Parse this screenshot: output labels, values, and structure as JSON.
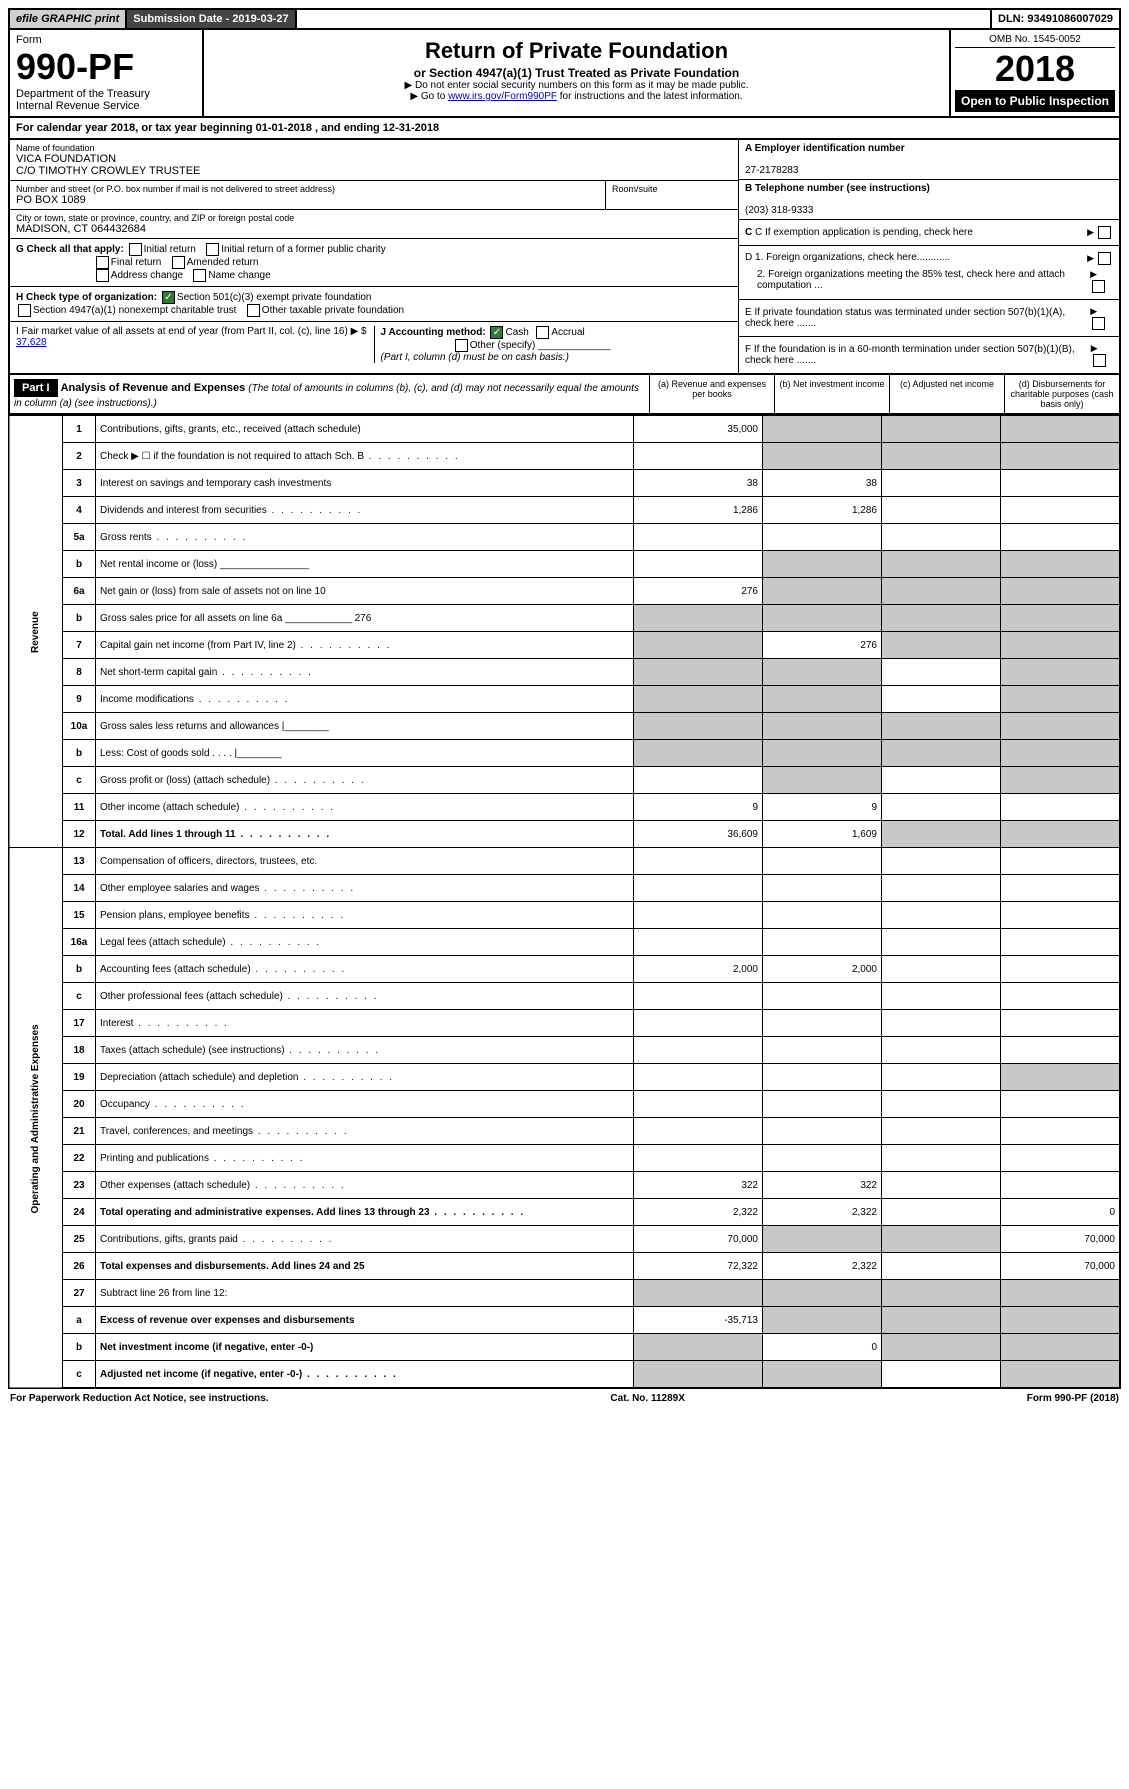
{
  "topbar": {
    "efile": "efile GRAPHIC print",
    "submission_label": "Submission Date - 2019-03-27",
    "dln": "DLN: 93491086007029"
  },
  "header": {
    "form_word": "Form",
    "form_num": "990-PF",
    "dept": "Department of the Treasury",
    "irs": "Internal Revenue Service",
    "title": "Return of Private Foundation",
    "subtitle": "or Section 4947(a)(1) Trust Treated as Private Foundation",
    "notice1": "▶ Do not enter social security numbers on this form as it may be made public.",
    "notice2_pre": "▶ Go to ",
    "notice2_link": "www.irs.gov/Form990PF",
    "notice2_post": " for instructions and the latest information.",
    "omb": "OMB No. 1545-0052",
    "year": "2018",
    "open": "Open to Public Inspection"
  },
  "calendar": "For calendar year 2018, or tax year beginning 01-01-2018             , and ending 12-31-2018",
  "foundation": {
    "name_label": "Name of foundation",
    "name1": "VICA FOUNDATION",
    "name2": "C/O TIMOTHY CROWLEY TRUSTEE",
    "street_label": "Number and street (or P.O. box number if mail is not delivered to street address)",
    "street": "PO BOX 1089",
    "room_label": "Room/suite",
    "city_label": "City or town, state or province, country, and ZIP or foreign postal code",
    "city": "MADISON, CT  064432684"
  },
  "right": {
    "a_label": "A Employer identification number",
    "a_val": "27-2178283",
    "b_label": "B Telephone number (see instructions)",
    "b_val": "(203) 318-9333",
    "c_label": "C If exemption application is pending, check here",
    "d1": "D 1. Foreign organizations, check here............",
    "d2": "2. Foreign organizations meeting the 85% test, check here and attach computation ...",
    "e": "E If private foundation status was terminated under section 507(b)(1)(A), check here .......",
    "f": "F If the foundation is in a 60-month termination under section 507(b)(1)(B), check here ......."
  },
  "g": {
    "label": "G Check all that apply:",
    "initial": "Initial return",
    "initial_former": "Initial return of a former public charity",
    "final": "Final return",
    "amended": "Amended return",
    "address": "Address change",
    "name": "Name change"
  },
  "h": {
    "label": "H Check type of organization:",
    "s501": "Section 501(c)(3) exempt private foundation",
    "s4947": "Section 4947(a)(1) nonexempt charitable trust",
    "other": "Other taxable private foundation"
  },
  "i": {
    "label": "I Fair market value of all assets at end of year (from Part II, col. (c), line 16) ▶ $",
    "val": "37,628"
  },
  "j": {
    "label": "J Accounting method:",
    "cash": "Cash",
    "accrual": "Accrual",
    "other": "Other (specify)",
    "note": "(Part I, column (d) must be on cash basis.)"
  },
  "part1": {
    "label": "Part I",
    "title": "Analysis of Revenue and Expenses",
    "desc": "(The total of amounts in columns (b), (c), and (d) may not necessarily equal the amounts in column (a) (see instructions).)",
    "col_a": "(a)   Revenue and expenses per books",
    "col_b": "(b)   Net investment income",
    "col_c": "(c)   Adjusted net income",
    "col_d": "(d)   Disbursements for charitable purposes (cash basis only)"
  },
  "sections": {
    "revenue": "Revenue",
    "expenses": "Operating and Administrative Expenses"
  },
  "rows": [
    {
      "n": "1",
      "t": "Contributions, gifts, grants, etc., received (attach schedule)",
      "a": "35,000",
      "b": "",
      "sb": true,
      "sc": true,
      "sd": true
    },
    {
      "n": "2",
      "t": "Check ▶ ☐ if the foundation is not required to attach Sch. B",
      "a": "",
      "b": "",
      "sb": true,
      "sc": true,
      "sd": true,
      "dots": true
    },
    {
      "n": "3",
      "t": "Interest on savings and temporary cash investments",
      "a": "38",
      "b": "38"
    },
    {
      "n": "4",
      "t": "Dividends and interest from securities",
      "a": "1,286",
      "b": "1,286",
      "dots": true
    },
    {
      "n": "5a",
      "t": "Gross rents",
      "dots": true
    },
    {
      "n": "b",
      "t": "Net rental income or (loss) ________________",
      "sa": false,
      "sb": true,
      "sc": true,
      "sd": true
    },
    {
      "n": "6a",
      "t": "Net gain or (loss) from sale of assets not on line 10",
      "a": "276",
      "sb": true,
      "sc": true,
      "sd": true
    },
    {
      "n": "b",
      "t": "Gross sales price for all assets on line 6a ____________ 276",
      "sa": true,
      "sb": true,
      "sc": true,
      "sd": true
    },
    {
      "n": "7",
      "t": "Capital gain net income (from Part IV, line 2)",
      "b": "276",
      "sa": true,
      "sc": true,
      "sd": true,
      "dots": true
    },
    {
      "n": "8",
      "t": "Net short-term capital gain",
      "sa": true,
      "sb": true,
      "sd": true,
      "dots": true
    },
    {
      "n": "9",
      "t": "Income modifications",
      "sa": true,
      "sb": true,
      "sd": true,
      "dots": true
    },
    {
      "n": "10a",
      "t": "Gross sales less returns and allowances  |________",
      "sa": true,
      "sb": true,
      "sc": true,
      "sd": true
    },
    {
      "n": "b",
      "t": "Less: Cost of goods sold      . . . .    |________",
      "sa": true,
      "sb": true,
      "sc": true,
      "sd": true
    },
    {
      "n": "c",
      "t": "Gross profit or (loss) (attach schedule)",
      "sb": true,
      "sd": true,
      "dots": true
    },
    {
      "n": "11",
      "t": "Other income (attach schedule)",
      "a": "9",
      "b": "9",
      "dots": true
    },
    {
      "n": "12",
      "t": "Total. Add lines 1 through 11",
      "a": "36,609",
      "b": "1,609",
      "sc": true,
      "sd": true,
      "bold": true,
      "dots": true
    }
  ],
  "exp_rows": [
    {
      "n": "13",
      "t": "Compensation of officers, directors, trustees, etc."
    },
    {
      "n": "14",
      "t": "Other employee salaries and wages",
      "dots": true
    },
    {
      "n": "15",
      "t": "Pension plans, employee benefits",
      "dots": true
    },
    {
      "n": "16a",
      "t": "Legal fees (attach schedule)",
      "dots": true
    },
    {
      "n": "b",
      "t": "Accounting fees (attach schedule)",
      "a": "2,000",
      "b": "2,000",
      "dots": true
    },
    {
      "n": "c",
      "t": "Other professional fees (attach schedule)",
      "dots": true
    },
    {
      "n": "17",
      "t": "Interest",
      "dots": true
    },
    {
      "n": "18",
      "t": "Taxes (attach schedule) (see instructions)",
      "dots": true
    },
    {
      "n": "19",
      "t": "Depreciation (attach schedule) and depletion",
      "sd": true,
      "dots": true
    },
    {
      "n": "20",
      "t": "Occupancy",
      "dots": true
    },
    {
      "n": "21",
      "t": "Travel, conferences, and meetings",
      "dots": true
    },
    {
      "n": "22",
      "t": "Printing and publications",
      "dots": true
    },
    {
      "n": "23",
      "t": "Other expenses (attach schedule)",
      "a": "322",
      "b": "322",
      "dots": true
    },
    {
      "n": "24",
      "t": "Total operating and administrative expenses. Add lines 13 through 23",
      "a": "2,322",
      "b": "2,322",
      "d": "0",
      "bold": true,
      "dots": true
    },
    {
      "n": "25",
      "t": "Contributions, gifts, grants paid",
      "a": "70,000",
      "sb": true,
      "sc": true,
      "d": "70,000",
      "dots": true
    },
    {
      "n": "26",
      "t": "Total expenses and disbursements. Add lines 24 and 25",
      "a": "72,322",
      "b": "2,322",
      "d": "70,000",
      "bold": true
    },
    {
      "n": "27",
      "t": "Subtract line 26 from line 12:",
      "sa": true,
      "sb": true,
      "sc": true,
      "sd": true
    },
    {
      "n": "a",
      "t": "Excess of revenue over expenses and disbursements",
      "a": "-35,713",
      "sb": true,
      "sc": true,
      "sd": true,
      "bold": true
    },
    {
      "n": "b",
      "t": "Net investment income (if negative, enter -0-)",
      "sa": true,
      "b": "0",
      "sc": true,
      "sd": true,
      "bold": true
    },
    {
      "n": "c",
      "t": "Adjusted net income (if negative, enter -0-)",
      "sa": true,
      "sb": true,
      "sd": true,
      "bold": true,
      "dots": true
    }
  ],
  "footer": {
    "left": "For Paperwork Reduction Act Notice, see instructions.",
    "center": "Cat. No. 11289X",
    "right": "Form 990-PF (2018)"
  }
}
